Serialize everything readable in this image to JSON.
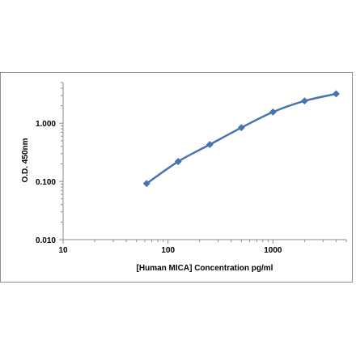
{
  "chart_data": {
    "type": "line",
    "title": "",
    "xlabel": "[Human MICA]  Concentration pg/ml",
    "ylabel": "O.D. 450nm",
    "x_scale": "log",
    "y_scale": "log",
    "xlim": [
      10,
      5000
    ],
    "ylim": [
      0.01,
      5
    ],
    "x_ticks": [
      10,
      100,
      1000
    ],
    "x_tick_labels": [
      "10",
      "100",
      "1000"
    ],
    "y_ticks": [
      0.01,
      0.1,
      1
    ],
    "y_tick_labels": [
      "0.010",
      "0.100",
      "1.000"
    ],
    "grid": false,
    "legend": "none",
    "series": [
      {
        "color": "#4a72b0",
        "marker": "diamond",
        "x": [
          62.5,
          125,
          250,
          500,
          1000,
          2000,
          4000
        ],
        "y": [
          0.092,
          0.22,
          0.43,
          0.84,
          1.56,
          2.42,
          3.2
        ]
      }
    ]
  }
}
